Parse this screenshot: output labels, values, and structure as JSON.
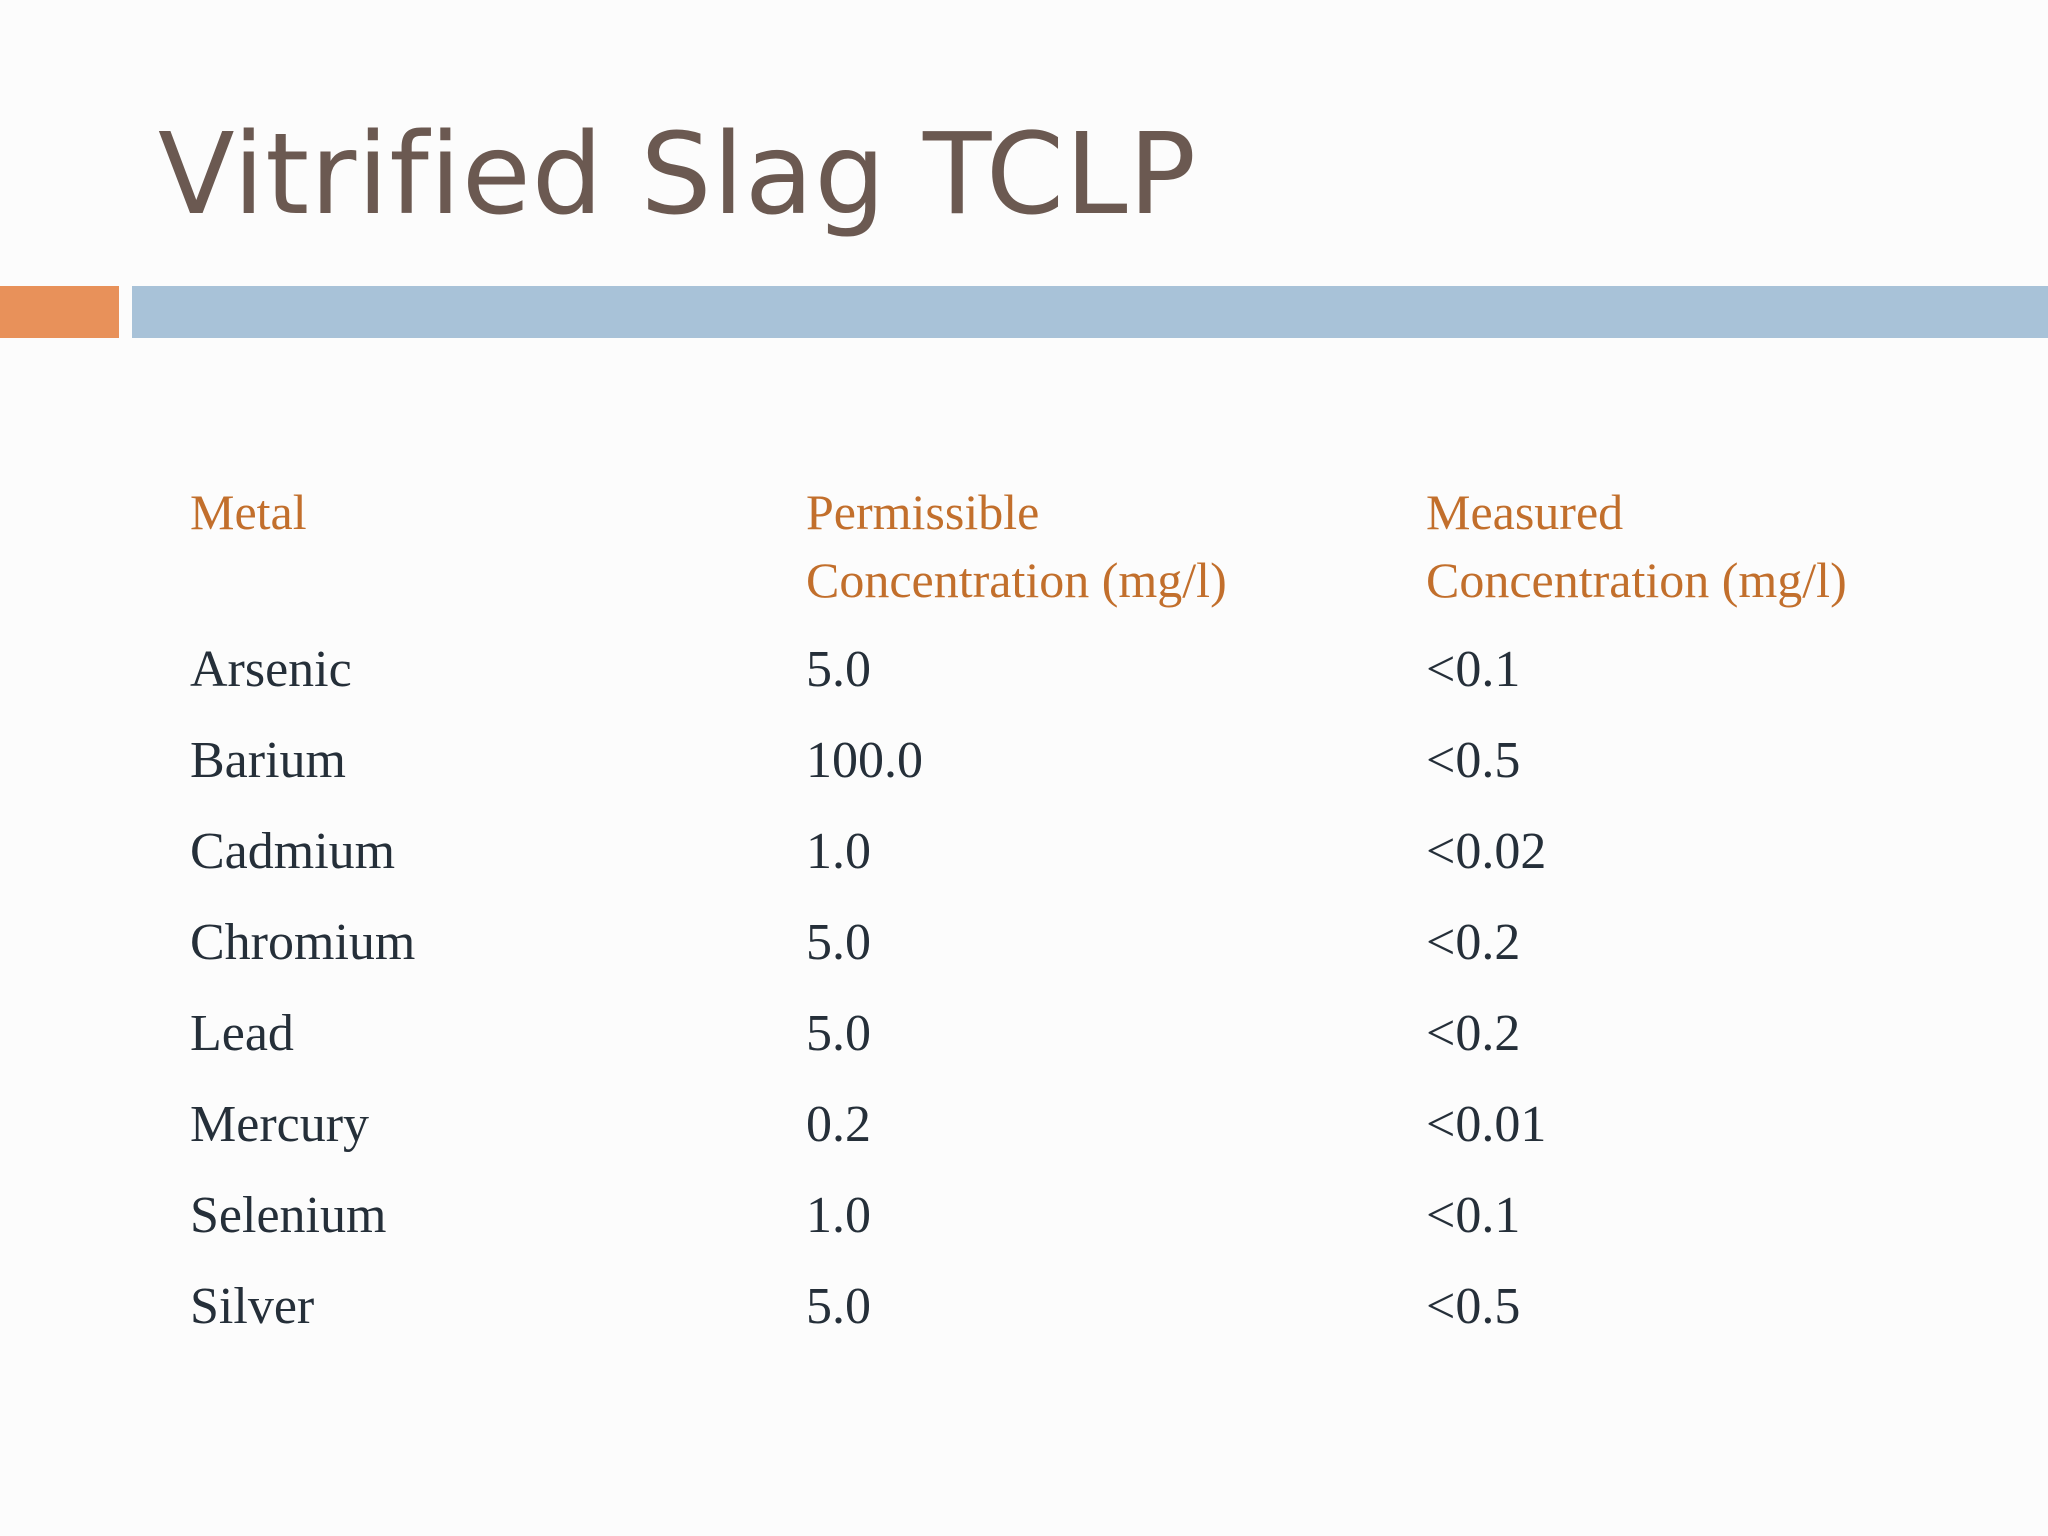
{
  "slide": {
    "title": "Vitrified Slag TCLP"
  },
  "colors": {
    "title": "#6b5951",
    "accent_bar": "#e8915a",
    "divider_bar": "#a8c2d8",
    "header_text": "#c26f2c",
    "body_text": "#252f39",
    "background": "#fcfcfc"
  },
  "table": {
    "headers": [
      "Metal",
      "Permissible\nConcentration (mg/l)",
      "Measured\nConcentration (mg/l)"
    ],
    "rows": [
      [
        "Arsenic",
        "5.0",
        "<0.1"
      ],
      [
        "Barium",
        "100.0",
        "<0.5"
      ],
      [
        "Cadmium",
        "1.0",
        "<0.02"
      ],
      [
        "Chromium",
        "5.0",
        "<0.2"
      ],
      [
        "Lead",
        "5.0",
        "<0.2"
      ],
      [
        "Mercury",
        "0.2",
        "<0.01"
      ],
      [
        "Selenium",
        "1.0",
        "<0.1"
      ],
      [
        "Silver",
        "5.0",
        "<0.5"
      ]
    ]
  }
}
